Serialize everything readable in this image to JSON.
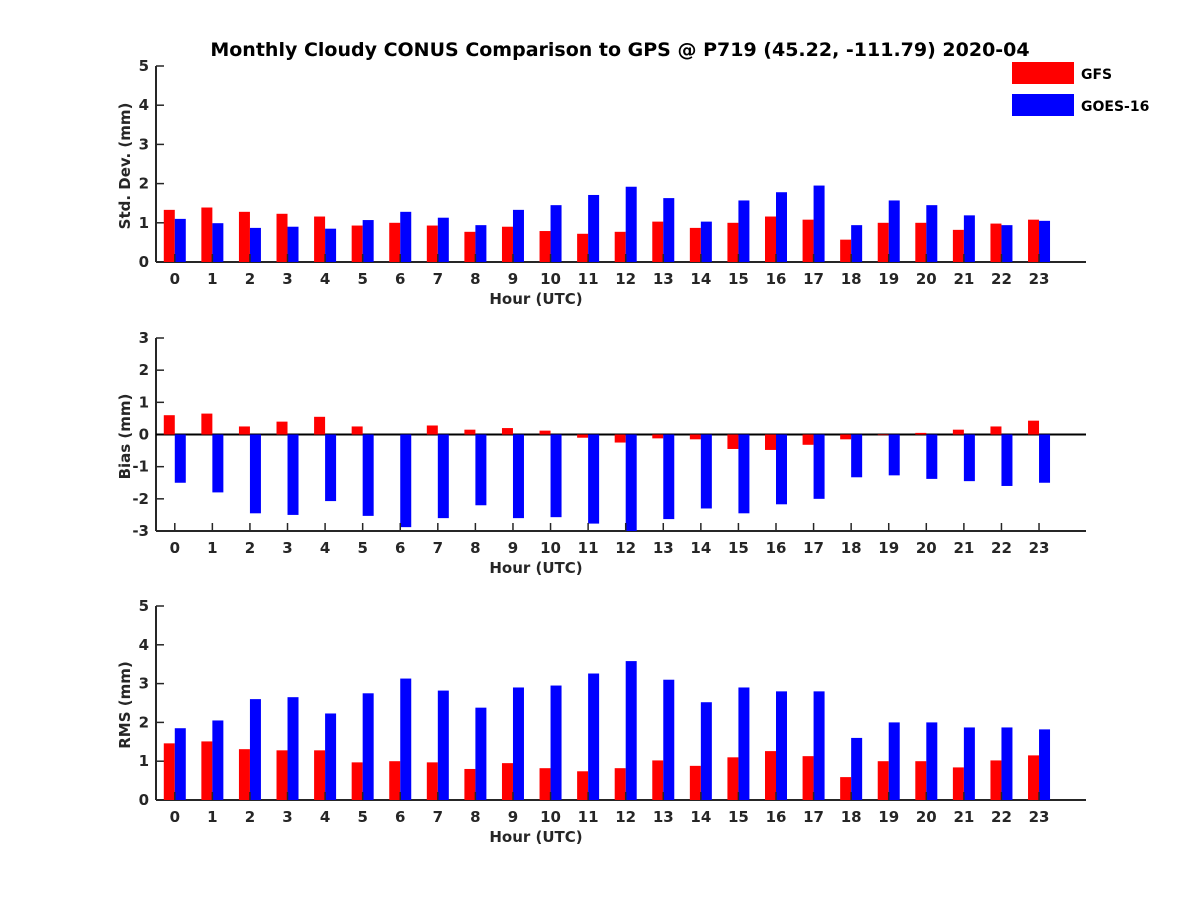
{
  "figure": {
    "title": "Monthly Cloudy CONUS Comparison to GPS @ P719 (45.22, -111.79) 2020-04"
  },
  "legend": {
    "placement": "top-right",
    "entries": [
      {
        "name": "GFS",
        "color": "#ff0000"
      },
      {
        "name": "GOES-16",
        "color": "#0000ff"
      }
    ]
  },
  "chart_data": [
    {
      "type": "bar",
      "xlabel": "Hour (UTC)",
      "ylabel": "Std. Dev. (mm)",
      "ylim": [
        0,
        5
      ],
      "yticks": [
        0,
        1,
        2,
        3,
        4,
        5
      ],
      "categories": [
        "0",
        "1",
        "2",
        "3",
        "4",
        "5",
        "6",
        "7",
        "8",
        "9",
        "10",
        "11",
        "12",
        "13",
        "14",
        "15",
        "16",
        "17",
        "18",
        "19",
        "20",
        "21",
        "22",
        "23"
      ],
      "series": [
        {
          "name": "GFS",
          "color": "#ff0000",
          "values": [
            1.33,
            1.39,
            1.28,
            1.23,
            1.16,
            0.93,
            1.0,
            0.93,
            0.77,
            0.9,
            0.79,
            0.72,
            0.77,
            1.03,
            0.87,
            1.0,
            1.16,
            1.08,
            0.57,
            1.0,
            1.0,
            0.82,
            0.98,
            1.08
          ]
        },
        {
          "name": "GOES-16",
          "color": "#0000ff",
          "values": [
            1.1,
            0.99,
            0.87,
            0.9,
            0.85,
            1.07,
            1.28,
            1.13,
            0.94,
            1.33,
            1.45,
            1.71,
            1.92,
            1.63,
            1.03,
            1.57,
            1.78,
            1.95,
            0.94,
            1.57,
            1.45,
            1.19,
            0.94,
            1.05
          ]
        }
      ]
    },
    {
      "type": "bar",
      "xlabel": "Hour (UTC)",
      "ylabel": "Bias (mm)",
      "ylim": [
        -3,
        3
      ],
      "yticks": [
        -3,
        -2,
        -1,
        0,
        1,
        2,
        3
      ],
      "categories": [
        "0",
        "1",
        "2",
        "3",
        "4",
        "5",
        "6",
        "7",
        "8",
        "9",
        "10",
        "11",
        "12",
        "13",
        "14",
        "15",
        "16",
        "17",
        "18",
        "19",
        "20",
        "21",
        "22",
        "23"
      ],
      "series": [
        {
          "name": "GFS",
          "color": "#ff0000",
          "values": [
            0.6,
            0.65,
            0.25,
            0.4,
            0.55,
            0.25,
            0.0,
            0.28,
            0.15,
            0.2,
            0.12,
            -0.1,
            -0.25,
            -0.12,
            -0.15,
            -0.45,
            -0.48,
            -0.32,
            -0.15,
            -0.02,
            0.05,
            0.15,
            0.25,
            0.43
          ]
        },
        {
          "name": "GOES-16",
          "color": "#0000ff",
          "values": [
            -1.5,
            -1.8,
            -2.45,
            -2.5,
            -2.07,
            -2.53,
            -2.88,
            -2.6,
            -2.2,
            -2.6,
            -2.57,
            -2.77,
            -3.0,
            -2.63,
            -2.3,
            -2.45,
            -2.17,
            -2.0,
            -1.33,
            -1.27,
            -1.38,
            -1.45,
            -1.6,
            -1.5
          ]
        }
      ]
    },
    {
      "type": "bar",
      "xlabel": "Hour (UTC)",
      "ylabel": "RMS (mm)",
      "ylim": [
        0,
        5
      ],
      "yticks": [
        0,
        1,
        2,
        3,
        4,
        5
      ],
      "categories": [
        "0",
        "1",
        "2",
        "3",
        "4",
        "5",
        "6",
        "7",
        "8",
        "9",
        "10",
        "11",
        "12",
        "13",
        "14",
        "15",
        "16",
        "17",
        "18",
        "19",
        "20",
        "21",
        "22",
        "23"
      ],
      "series": [
        {
          "name": "GFS",
          "color": "#ff0000",
          "values": [
            1.46,
            1.51,
            1.31,
            1.28,
            1.28,
            0.97,
            1.0,
            0.97,
            0.8,
            0.95,
            0.82,
            0.74,
            0.82,
            1.02,
            0.88,
            1.1,
            1.26,
            1.13,
            0.59,
            1.0,
            1.0,
            0.84,
            1.02,
            1.15
          ]
        },
        {
          "name": "GOES-16",
          "color": "#0000ff",
          "values": [
            1.85,
            2.05,
            2.6,
            2.65,
            2.23,
            2.75,
            3.13,
            2.82,
            2.38,
            2.9,
            2.95,
            3.26,
            3.58,
            3.1,
            2.52,
            2.9,
            2.8,
            2.8,
            1.6,
            2.0,
            2.0,
            1.87,
            1.87,
            1.82
          ]
        }
      ]
    }
  ]
}
